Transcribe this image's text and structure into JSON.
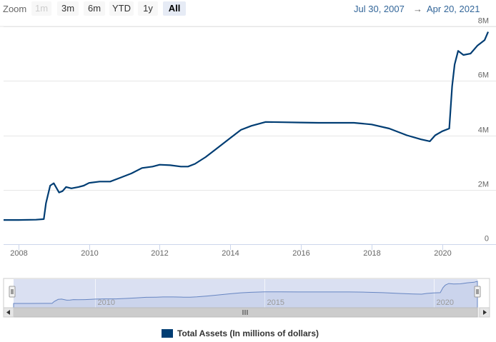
{
  "toolbar": {
    "zoom_label": "Zoom",
    "buttons": [
      {
        "label": "1m",
        "state": "disabled"
      },
      {
        "label": "3m",
        "state": "normal"
      },
      {
        "label": "6m",
        "state": "normal"
      },
      {
        "label": "YTD",
        "state": "normal"
      },
      {
        "label": "1y",
        "state": "normal"
      },
      {
        "label": "All",
        "state": "active"
      }
    ],
    "range_from": "Jul 30, 2007",
    "range_sep": "→",
    "range_to": "Apr 20, 2021"
  },
  "colors": {
    "series": "#003d73",
    "navigator_fill": "#d3daf0",
    "navigator_line": "#6685c2"
  },
  "chart_data": {
    "type": "line",
    "xlim": [
      2007.58,
      2021.3
    ],
    "ylim": [
      0,
      8000000
    ],
    "y_ticks": [
      0,
      2000000,
      4000000,
      6000000,
      8000000
    ],
    "y_tick_labels": [
      "0",
      "2M",
      "4M",
      "6M",
      "8M"
    ],
    "x_ticks": [
      2008,
      2010,
      2012,
      2014,
      2016,
      2018,
      2020
    ],
    "x_tick_labels": [
      "2008",
      "2010",
      "2012",
      "2014",
      "2016",
      "2018",
      "2020"
    ],
    "navigator_ticks": [
      2010,
      2015,
      2020
    ],
    "navigator_tick_labels": [
      "2010",
      "2015",
      "2020"
    ],
    "grid": true,
    "legend_position": "bottom-center",
    "series": [
      {
        "name": "Total Assets (In millions of dollars)",
        "x": [
          2007.58,
          2008.0,
          2008.5,
          2008.72,
          2008.78,
          2008.9,
          2009.0,
          2009.15,
          2009.25,
          2009.35,
          2009.5,
          2009.7,
          2009.85,
          2010.0,
          2010.3,
          2010.6,
          2010.9,
          2011.2,
          2011.5,
          2011.8,
          2012.0,
          2012.3,
          2012.6,
          2012.8,
          2013.0,
          2013.3,
          2013.6,
          2014.0,
          2014.3,
          2014.6,
          2015.0,
          2015.5,
          2016.0,
          2016.5,
          2017.0,
          2017.5,
          2018.0,
          2018.5,
          2019.0,
          2019.4,
          2019.65,
          2019.8,
          2020.0,
          2020.2,
          2020.28,
          2020.35,
          2020.45,
          2020.6,
          2020.8,
          2021.0,
          2021.2,
          2021.3
        ],
        "y": [
          890000,
          890000,
          900000,
          920000,
          1500000,
          2150000,
          2240000,
          1900000,
          1950000,
          2100000,
          2050000,
          2100000,
          2150000,
          2250000,
          2300000,
          2300000,
          2450000,
          2600000,
          2800000,
          2850000,
          2920000,
          2900000,
          2850000,
          2850000,
          2950000,
          3200000,
          3500000,
          3900000,
          4200000,
          4350000,
          4490000,
          4480000,
          4470000,
          4460000,
          4460000,
          4460000,
          4400000,
          4250000,
          4000000,
          3850000,
          3780000,
          4000000,
          4150000,
          4250000,
          5800000,
          6600000,
          7100000,
          6950000,
          7000000,
          7300000,
          7500000,
          7800000
        ]
      }
    ]
  }
}
